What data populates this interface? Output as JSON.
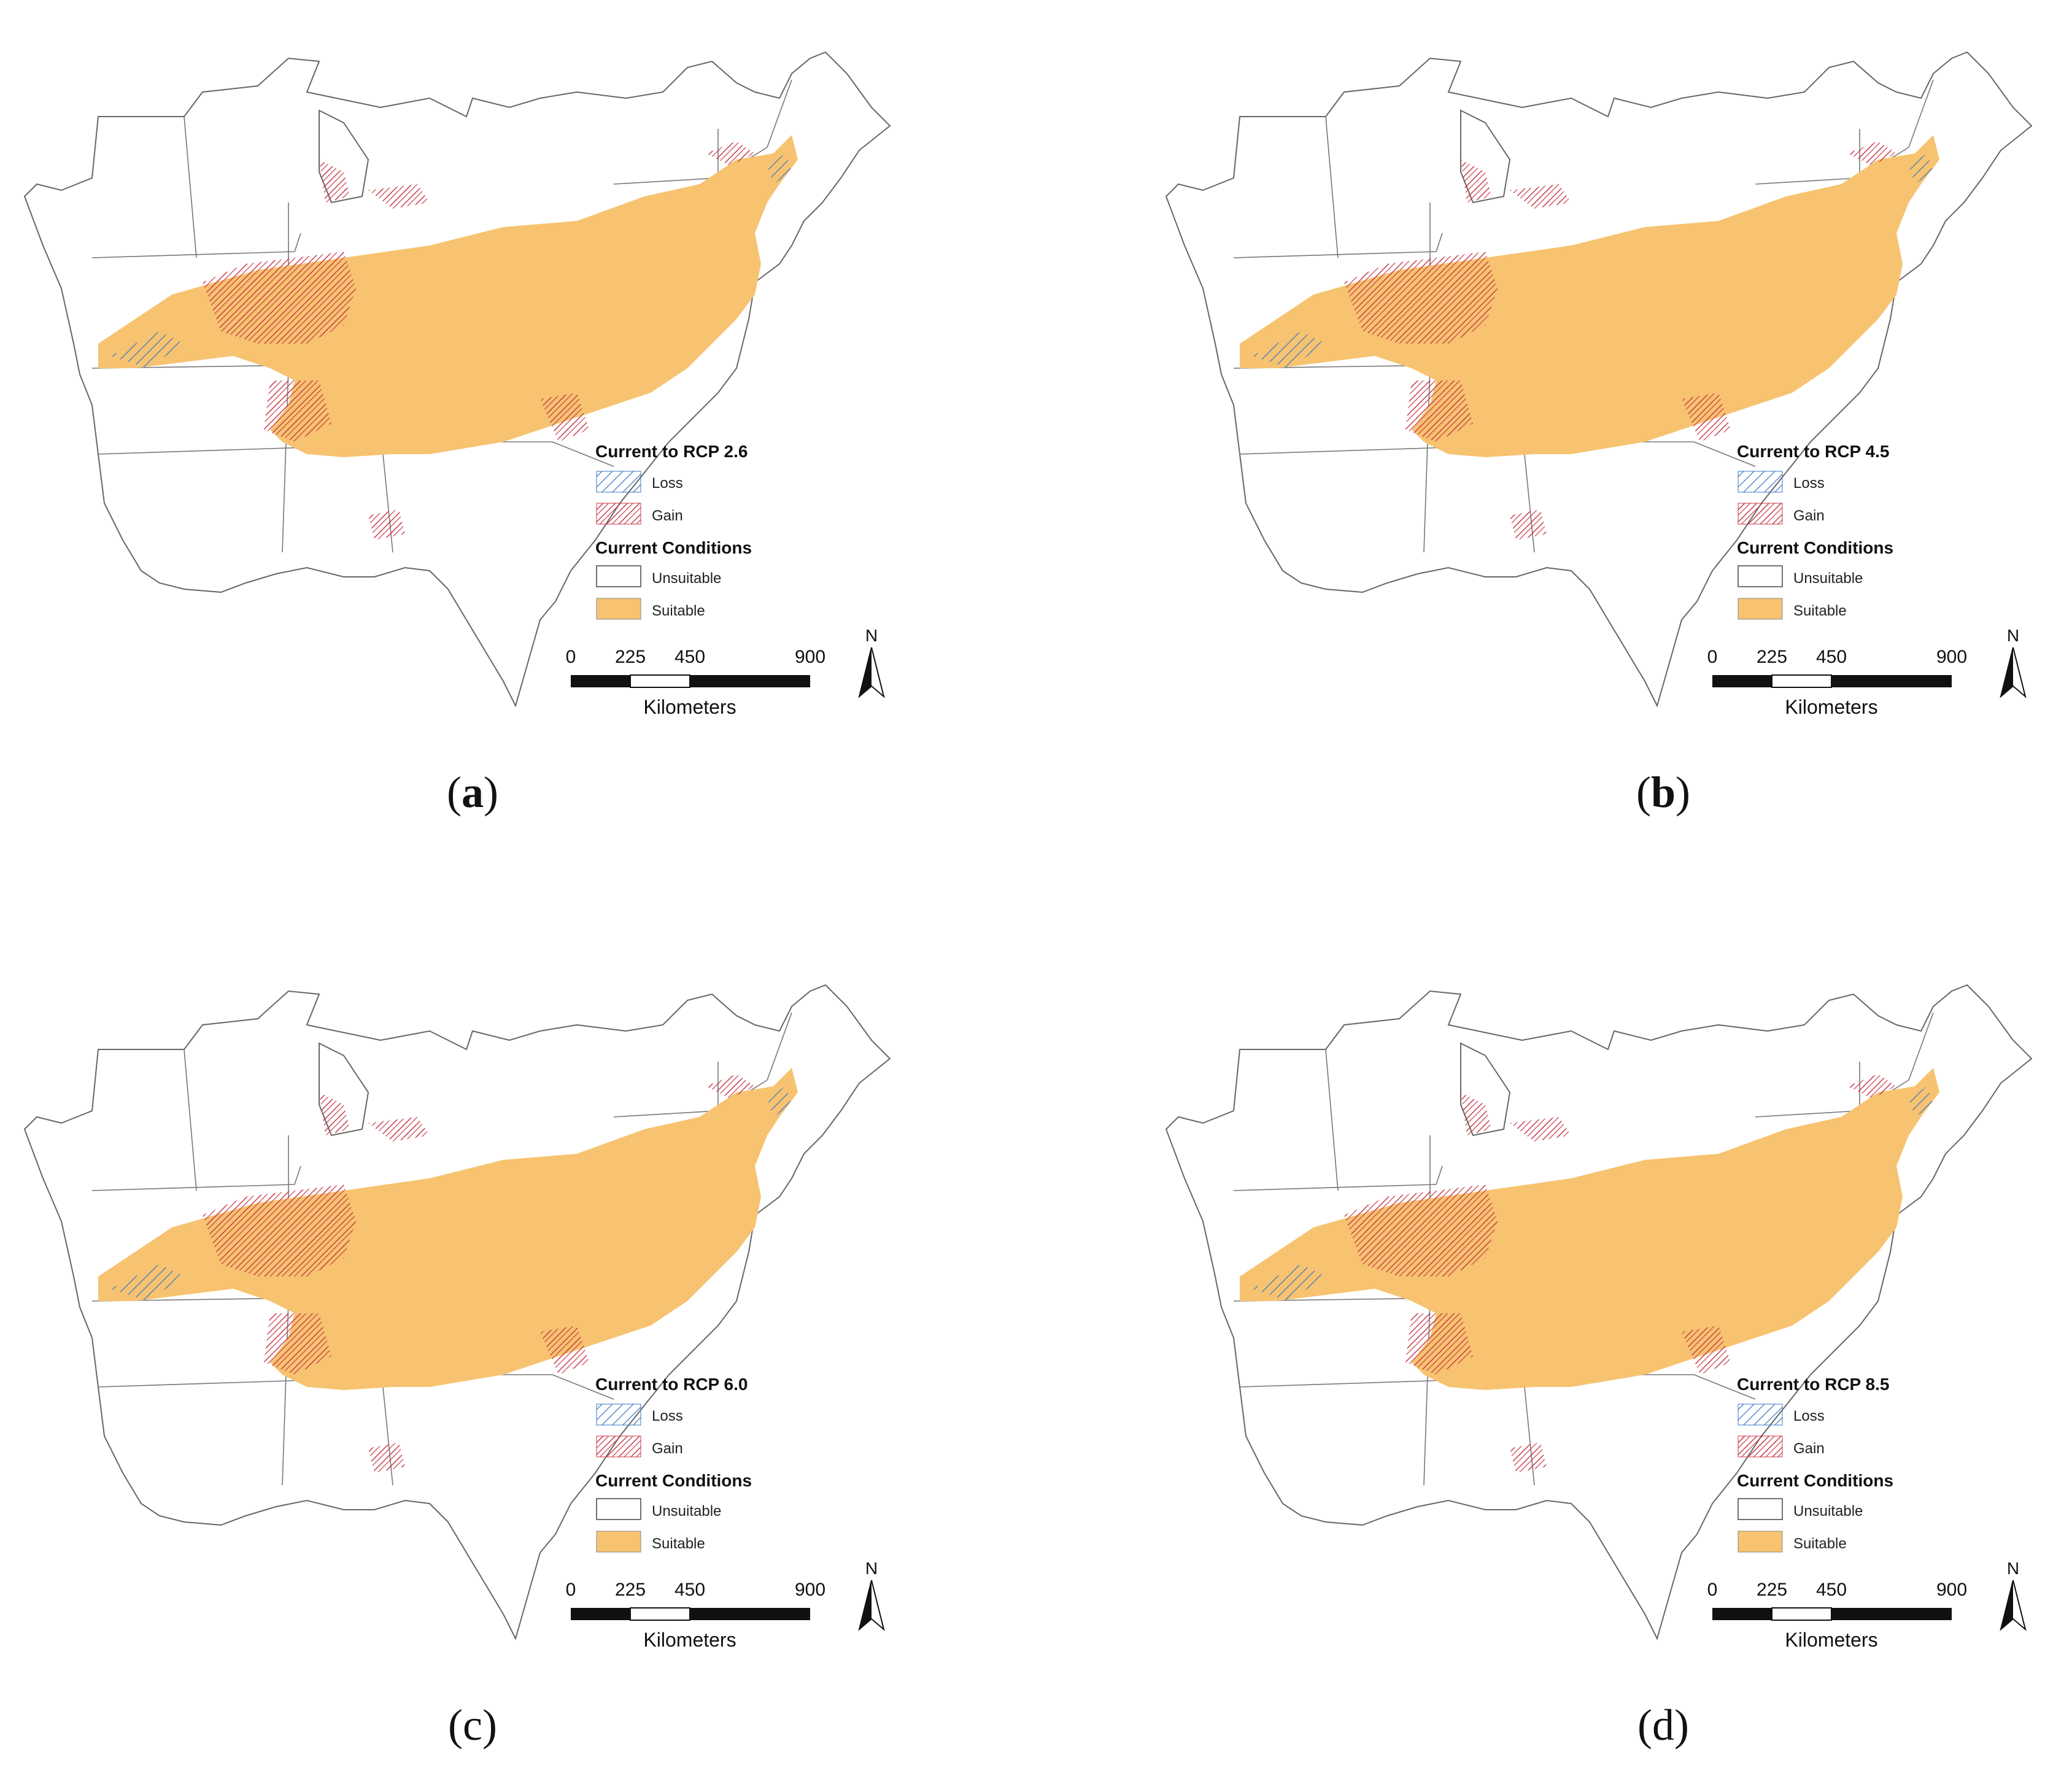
{
  "colors": {
    "suitable": "#F7C370",
    "loss": "#3A78C2",
    "gain": "#C83A4A",
    "border": "#666666"
  },
  "legend_common": {
    "loss_label": "Loss",
    "gain_label": "Gain",
    "conditions_title": "Current Conditions",
    "unsuitable_label": "Unsuitable",
    "suitable_label": "Suitable"
  },
  "scalebar": {
    "ticks": [
      "0",
      "225",
      "450",
      "900"
    ],
    "unit": "Kilometers"
  },
  "north_label": "N",
  "panels": [
    {
      "id": "a",
      "legend_title": "Current to RCP 2.6",
      "caption_open": "(",
      "caption_letter": "a",
      "caption_close": ")"
    },
    {
      "id": "b",
      "legend_title": "Current to RCP 4.5",
      "caption_open": "(",
      "caption_letter": "b",
      "caption_close": ")"
    },
    {
      "id": "c",
      "legend_title": "Current to RCP 6.0",
      "caption_open": "(",
      "caption_letter": "c",
      "caption_close": ")"
    },
    {
      "id": "d",
      "legend_title": "Current to RCP 8.5",
      "caption_open": "(",
      "caption_letter": "d",
      "caption_close": ")"
    }
  ]
}
